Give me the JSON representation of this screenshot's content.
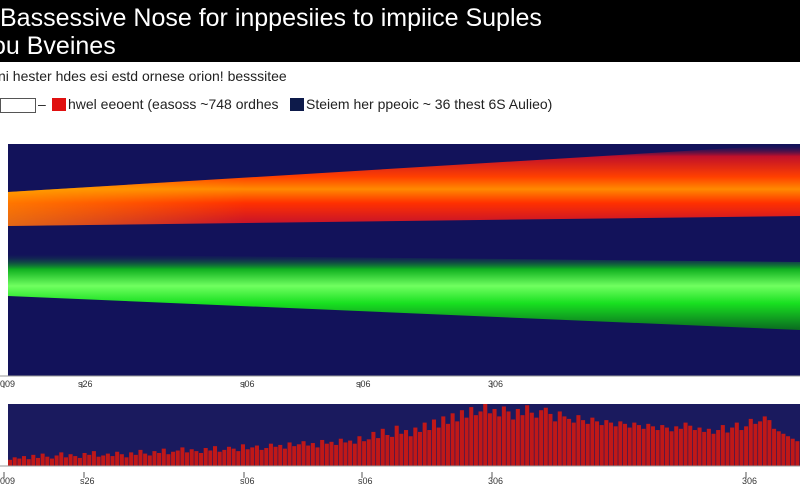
{
  "chart_data": {
    "type": "area",
    "title_line1": "Bassessive Nose for inppesiies to impiice Suples",
    "title_line2": "ou Bveines",
    "subtitle": "ni hester hdes esi estd ornese orion! besssitee",
    "legend": [
      {
        "label": "hwel eeoent (easoss ~748 ordhes",
        "color": "#e01010"
      },
      {
        "label": "Steiem her ppeoic ~ 36 thest 6S Aulieo)",
        "color": "#0d1a4a"
      }
    ],
    "top_panel": {
      "background": "#12125a",
      "series": [
        {
          "color": "#ff3a00",
          "edge_color": "#ff9a00"
        },
        {
          "color": "#10e020",
          "edge_color": "#70ff70"
        }
      ],
      "x_ticks": [
        "009",
        "s26",
        "s06",
        "s06",
        "306"
      ]
    },
    "bottom_panel": {
      "background": "#1a1a5e",
      "bar_color": "#c01818",
      "values": [
        10,
        14,
        12,
        16,
        11,
        18,
        13,
        20,
        15,
        12,
        17,
        22,
        14,
        19,
        16,
        13,
        21,
        18,
        24,
        15,
        17,
        20,
        16,
        23,
        19,
        14,
        22,
        18,
        26,
        20,
        17,
        24,
        21,
        28,
        19,
        23,
        25,
        30,
        22,
        27,
        24,
        21,
        29,
        25,
        32,
        23,
        26,
        31,
        28,
        24,
        35,
        27,
        30,
        33,
        26,
        29,
        36,
        31,
        34,
        28,
        38,
        32,
        35,
        40,
        33,
        37,
        30,
        42,
        36,
        39,
        34,
        44,
        38,
        41,
        36,
        48,
        40,
        43,
        55,
        45,
        60,
        50,
        47,
        65,
        52,
        58,
        48,
        62,
        55,
        70,
        58,
        75,
        62,
        80,
        68,
        85,
        72,
        90,
        78,
        95,
        82,
        88,
        100,
        85,
        92,
        80,
        96,
        88,
        75,
        92,
        82,
        98,
        86,
        78,
        90,
        94,
        84,
        72,
        88,
        80,
        76,
        70,
        82,
        74,
        68,
        78,
        72,
        66,
        74,
        70,
        64,
        72,
        68,
        62,
        70,
        66,
        60,
        68,
        64,
        58,
        66,
        62,
        56,
        64,
        60,
        70,
        65,
        58,
        62,
        55,
        60,
        52,
        58,
        66,
        54,
        62,
        70,
        58,
        64,
        76,
        68,
        72,
        80,
        74,
        60,
        56,
        52,
        48,
        44,
        40
      ],
      "x_ticks": [
        "009",
        "s26",
        "s06",
        "s06",
        "306",
        "306"
      ]
    }
  }
}
